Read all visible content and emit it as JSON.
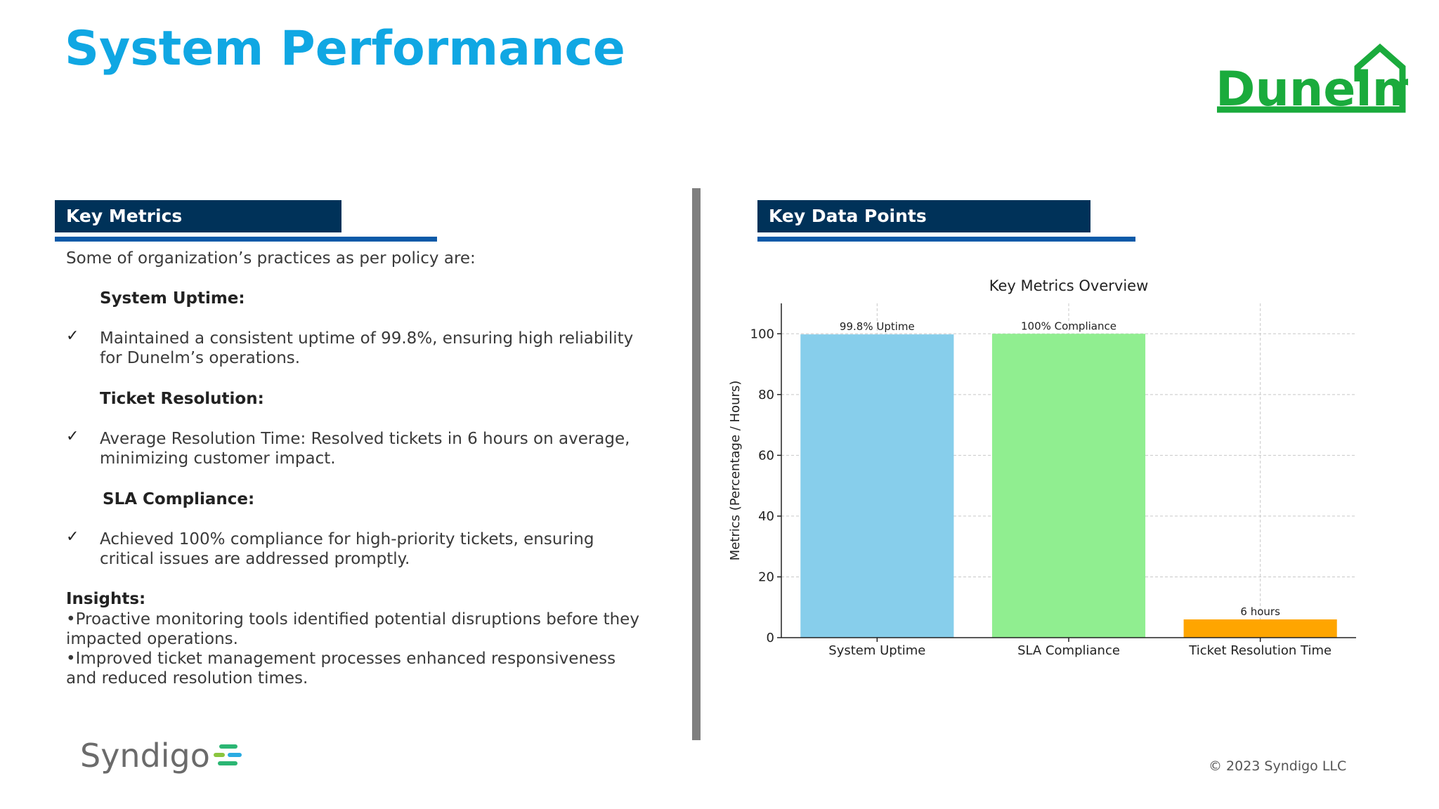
{
  "page": {
    "title": "System Performance",
    "logo_text": "Dunelm",
    "footer_logo_text": "Syndigo",
    "copyright": "© 2023 Syndigo LLC"
  },
  "left": {
    "header": "Key Metrics",
    "intro": "Some of organization’s practices as per policy are:",
    "sections": [
      {
        "heading": "System Uptime:",
        "bullet_line1": "Maintained a consistent uptime of 99.8%, ensuring high reliability",
        "bullet_line2": "for Dunelm’s operations."
      },
      {
        "heading": "Ticket Resolution:",
        "bullet_line1": "Average Resolution Time: Resolved tickets in 6 hours on average,",
        "bullet_line2": "minimizing customer impact."
      },
      {
        "heading": "SLA Compliance:",
        "bullet_line1": " Achieved 100% compliance for high-priority tickets, ensuring",
        "bullet_line2": "critical issues are addressed promptly."
      }
    ],
    "check_symbol": "✓",
    "insights": {
      "heading": "Insights:",
      "line1": "•Proactive monitoring tools identified potential disruptions before they",
      "line2": "impacted operations.",
      "line3": "•Improved ticket management processes enhanced responsiveness",
      "line4": "and reduced resolution times."
    }
  },
  "right": {
    "header": "Key Data Points"
  },
  "chart_data": {
    "type": "bar",
    "title": "Key Metrics Overview",
    "xlabel": "",
    "ylabel": "Metrics (Percentage / Hours)",
    "categories": [
      "System Uptime",
      "SLA Compliance",
      "Ticket Resolution Time"
    ],
    "values": [
      99.8,
      100,
      6
    ],
    "bar_labels": [
      "99.8% Uptime",
      "100% Compliance",
      "6 hours"
    ],
    "colors": [
      "#87ceeb",
      "#90ee90",
      "#ffa500"
    ],
    "ylim": [
      0,
      110
    ],
    "yticks": [
      0,
      20,
      40,
      60,
      80,
      100
    ],
    "grid": true
  },
  "colors": {
    "title": "#10a7e3",
    "header_bg": "#003259",
    "rule": "#0b5aa8",
    "dunelm_green": "#1aab3c"
  }
}
